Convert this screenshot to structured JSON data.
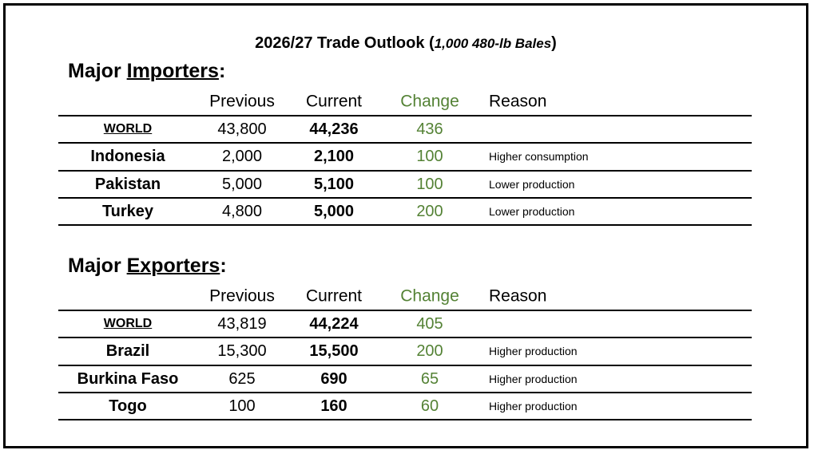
{
  "header": {
    "title": "2026/27 Trade Outlook (",
    "unit": "1,000 480-lb Bales",
    "close": ")"
  },
  "sections": [
    {
      "heading": {
        "lead": "Major ",
        "key": "Importers",
        "end": ":"
      },
      "columns": [
        "Previous",
        "Current",
        "Change",
        "Reason"
      ],
      "rows": [
        {
          "name": "WORLD",
          "previous": "43,800",
          "current": "44,236",
          "change": "436"
        },
        {
          "name": "Indonesia",
          "previous": "2,000",
          "current": "2,100",
          "change": "100",
          "reason": "Higher consumption"
        },
        {
          "name": "Pakistan",
          "previous": "5,000",
          "current": "5,100",
          "change": "100",
          "reason": "Lower production"
        },
        {
          "name": "Turkey",
          "previous": "4,800",
          "current": "5,000",
          "change": "200",
          "reason": "Lower production"
        }
      ]
    },
    {
      "heading": {
        "lead": "Major ",
        "key": "Exporters",
        "end": ":"
      },
      "columns": [
        "Previous",
        "Current",
        "Change",
        "Reason"
      ],
      "rows": [
        {
          "name": "WORLD",
          "previous": "43,819",
          "current": "44,224",
          "change": "405"
        },
        {
          "name": "Brazil",
          "previous": "15,300",
          "current": "15,500",
          "change": "200",
          "reason": "Higher production"
        },
        {
          "name": "Burkina Faso",
          "previous": "625",
          "current": "690",
          "change": "65",
          "reason": "Higher production"
        },
        {
          "name": "Togo",
          "previous": "100",
          "current": "160",
          "change": "60",
          "reason": "Higher production"
        }
      ]
    }
  ]
}
